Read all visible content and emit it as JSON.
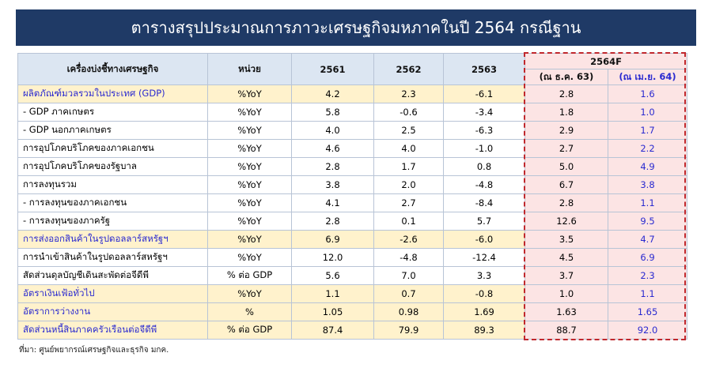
{
  "header": {
    "title": "ตารางสรุปประมาณการภาวะเศรษฐกิจมหภาคในปี 2564 กรณีฐาน"
  },
  "table": {
    "columns": [
      "เครื่องบ่งชี้ทางเศรษฐกิจ",
      "หน่วย",
      "2561",
      "2562",
      "2563"
    ],
    "forecast_header": "2564F",
    "forecast_subheaders": [
      "(ณ ธ.ค. 63)",
      "(ณ เม.ย. 64)"
    ],
    "rows": [
      {
        "label": "ผลิตภัณฑ์มวลรวมในประเทศ (GDP)",
        "unit": "%YoY",
        "values": [
          "4.2",
          "2.3",
          "-6.1",
          "2.8",
          "1.6"
        ],
        "highlight": true
      },
      {
        "label": " - GDP ภาคเกษตร",
        "unit": "%YoY",
        "values": [
          "5.8",
          "-0.6",
          "-3.4",
          "1.8",
          "1.0"
        ],
        "highlight": false
      },
      {
        "label": " - GDP นอกภาคเกษตร",
        "unit": "%YoY",
        "values": [
          "4.0",
          "2.5",
          "-6.3",
          "2.9",
          "1.7"
        ],
        "highlight": false
      },
      {
        "label": "การอุปโภคบริโภคของภาคเอกชน",
        "unit": "%YoY",
        "values": [
          "4.6",
          "4.0",
          "-1.0",
          "2.7",
          "2.2"
        ],
        "highlight": false
      },
      {
        "label": "การอุปโภคบริโภคของรัฐบาล",
        "unit": "%YoY",
        "values": [
          "2.8",
          "1.7",
          "0.8",
          "5.0",
          "4.9"
        ],
        "highlight": false
      },
      {
        "label": "การลงทุนรวม",
        "unit": "%YoY",
        "values": [
          "3.8",
          "2.0",
          "-4.8",
          "6.7",
          "3.8"
        ],
        "highlight": false
      },
      {
        "label": " - การลงทุนของภาคเอกชน",
        "unit": "%YoY",
        "values": [
          "4.1",
          "2.7",
          "-8.4",
          "2.8",
          "1.1"
        ],
        "highlight": false
      },
      {
        "label": " - การลงทุนของภาครัฐ",
        "unit": "%YoY",
        "values": [
          "2.8",
          "0.1",
          "5.7",
          "12.6",
          "9.5"
        ],
        "highlight": false
      },
      {
        "label": "การส่งออกสินค้าในรูปดอลลาร์สหรัฐฯ",
        "unit": "%YoY",
        "values": [
          "6.9",
          "-2.6",
          "-6.0",
          "3.5",
          "4.7"
        ],
        "highlight": true
      },
      {
        "label": "การนำเข้าสินค้าในรูปดอลลาร์สหรัฐฯ",
        "unit": "%YoY",
        "values": [
          "12.0",
          "-4.8",
          "-12.4",
          "4.5",
          "6.9"
        ],
        "highlight": false
      },
      {
        "label": "สัดส่วนดุลบัญชีเดินสะพัดต่อจีดีพี",
        "unit": "% ต่อ GDP",
        "values": [
          "5.6",
          "7.0",
          "3.3",
          "3.7",
          "2.3"
        ],
        "highlight": false
      },
      {
        "label": "อัตราเงินเฟ้อทั่วไป",
        "unit": "%YoY",
        "values": [
          "1.1",
          "0.7",
          "-0.8",
          "1.0",
          "1.1"
        ],
        "highlight": true
      },
      {
        "label": "อัตราการว่างงาน",
        "unit": "%",
        "values": [
          "1.05",
          "0.98",
          "1.69",
          "1.63",
          "1.65"
        ],
        "highlight": true
      },
      {
        "label": "สัดส่วนหนี้สินภาคครัวเรือนต่อจีดีพี",
        "unit": "% ต่อ GDP",
        "values": [
          "87.4",
          "79.9",
          "89.3",
          "88.7",
          "92.0"
        ],
        "highlight": true
      }
    ]
  },
  "footer": {
    "source": "ที่มา: ศูนย์พยากรณ์เศรษฐกิจและธุรกิจ มกค."
  }
}
